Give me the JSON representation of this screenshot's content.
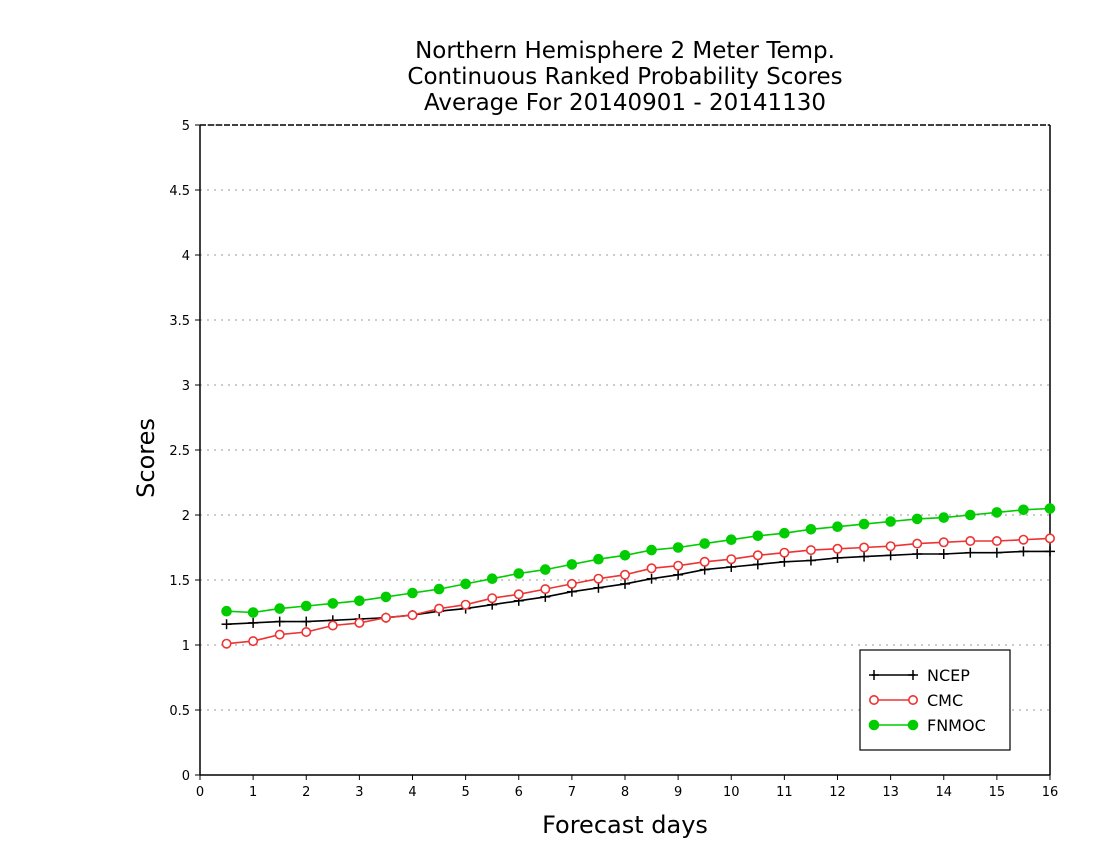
{
  "chart_data": {
    "type": "line",
    "title": [
      "Northern Hemisphere 2 Meter Temp.",
      "Continuous Ranked Probability Scores",
      "Average For 20140901 - 20141130"
    ],
    "xlabel": "Forecast days",
    "ylabel": "Scores",
    "xlim": [
      0,
      16
    ],
    "ylim": [
      0,
      5
    ],
    "xticks": [
      "0",
      "1",
      "2",
      "3",
      "4",
      "5",
      "6",
      "7",
      "8",
      "9",
      "10",
      "11",
      "12",
      "13",
      "14",
      "15",
      "16"
    ],
    "yticks": [
      "0",
      "0.5",
      "1",
      "1.5",
      "2",
      "2.5",
      "3",
      "3.5",
      "4",
      "4.5",
      "5"
    ],
    "grid": true,
    "legend_position": "bottom-right",
    "x": [
      0.5,
      1,
      1.5,
      2,
      2.5,
      3,
      3.5,
      4,
      4.5,
      5,
      5.5,
      6,
      6.5,
      7,
      7.5,
      8,
      8.5,
      9,
      9.5,
      10,
      10.5,
      11,
      11.5,
      12,
      12.5,
      13,
      13.5,
      14,
      14.5,
      15,
      15.5,
      16
    ],
    "series": [
      {
        "name": "NCEP",
        "color": "#000000",
        "marker": "plus",
        "values": [
          1.16,
          1.17,
          1.18,
          1.18,
          1.19,
          1.2,
          1.21,
          1.23,
          1.26,
          1.28,
          1.31,
          1.34,
          1.37,
          1.41,
          1.44,
          1.47,
          1.51,
          1.54,
          1.58,
          1.6,
          1.62,
          1.64,
          1.65,
          1.67,
          1.68,
          1.69,
          1.7,
          1.7,
          1.71,
          1.71,
          1.72,
          1.72
        ]
      },
      {
        "name": "CMC",
        "color": "#ee3333",
        "marker": "open-circle",
        "values": [
          1.01,
          1.03,
          1.08,
          1.1,
          1.15,
          1.17,
          1.21,
          1.23,
          1.28,
          1.31,
          1.36,
          1.39,
          1.43,
          1.47,
          1.51,
          1.54,
          1.59,
          1.61,
          1.64,
          1.66,
          1.69,
          1.71,
          1.73,
          1.74,
          1.75,
          1.76,
          1.78,
          1.79,
          1.8,
          1.8,
          1.81,
          1.82
        ]
      },
      {
        "name": "FNMOC",
        "color": "#00cc00",
        "marker": "filled-circle",
        "values": [
          1.26,
          1.25,
          1.28,
          1.3,
          1.32,
          1.34,
          1.37,
          1.4,
          1.43,
          1.47,
          1.51,
          1.55,
          1.58,
          1.62,
          1.66,
          1.69,
          1.73,
          1.75,
          1.78,
          1.81,
          1.84,
          1.86,
          1.89,
          1.91,
          1.93,
          1.95,
          1.97,
          1.98,
          2.0,
          2.02,
          2.04,
          2.05
        ]
      }
    ]
  }
}
